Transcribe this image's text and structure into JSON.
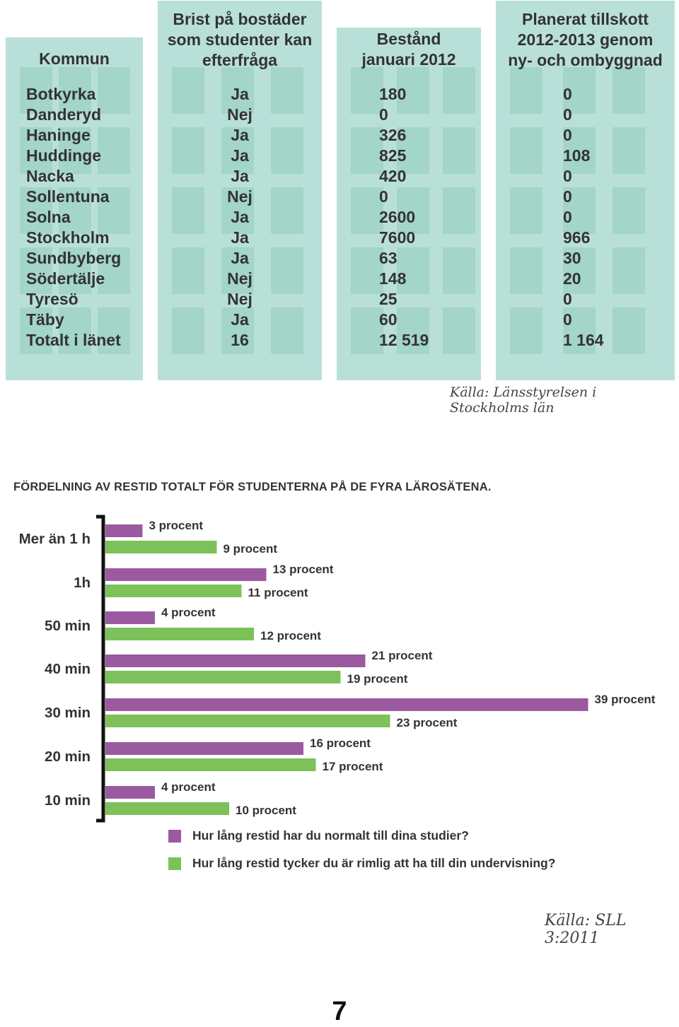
{
  "table": {
    "columns": [
      {
        "header": [
          "Kommun"
        ],
        "cells": [
          "Botkyrka",
          "Danderyd",
          "Haninge",
          "Huddinge",
          "Nacka",
          "Sollentuna",
          "Solna",
          "Stockholm",
          "Sundbyberg",
          "Södertälje",
          "Tyresö",
          "Täby",
          "Totalt i länet"
        ]
      },
      {
        "header": [
          "Brist på bostäder",
          "som studenter kan",
          "efterfråga"
        ],
        "cells": [
          "Ja",
          "Nej",
          "Ja",
          "Ja",
          "Ja",
          "Nej",
          "Ja",
          "Ja",
          "Ja",
          "Nej",
          "Nej",
          "Ja",
          "16"
        ]
      },
      {
        "header": [
          "Bestånd",
          "januari 2012"
        ],
        "cells": [
          "180",
          "0",
          "326",
          "825",
          "420",
          "0",
          "2600",
          "7600",
          "63",
          "148",
          "25",
          "60",
          "12 519"
        ]
      },
      {
        "header": [
          "Planerat tillskott",
          "2012-2013 genom",
          "ny- och ombyggnad"
        ],
        "cells": [
          "0",
          "0",
          "0",
          "108",
          "0",
          "0",
          "0",
          "966",
          "30",
          "20",
          "0",
          "0",
          "1 164"
        ]
      }
    ],
    "source": "Källa: Länsstyrelsen i Stockholms län",
    "colors": {
      "column_bg": "#b9e0d8",
      "tile_bg": "#a3d5c9"
    }
  },
  "chart_data": {
    "type": "bar",
    "orientation": "horizontal",
    "title": "FÖRDELNING AV RESTID TOTALT FÖR STUDENTERNA PÅ DE FYRA LÄROSÄTENA.",
    "categories": [
      "Mer än 1 h",
      "1h",
      "50 min",
      "40 min",
      "30 min",
      "20 min",
      "10 min"
    ],
    "series": [
      {
        "name": "Hur lång restid har du normalt till dina studier?",
        "color": "#9b59a0",
        "values": [
          3,
          13,
          4,
          21,
          39,
          16,
          4
        ],
        "labels": [
          "3 procent",
          "13 procent",
          "4 procent",
          "21 procent",
          "39 procent",
          "16 procent",
          "4 procent"
        ]
      },
      {
        "name": "Hur lång restid tycker du är rimlig att ha till din undervisning?",
        "color": "#7cc15a",
        "values": [
          9,
          11,
          12,
          19,
          23,
          17,
          10
        ],
        "labels": [
          "9 procent",
          "11 procent",
          "12 procent",
          "19 procent",
          "23 procent",
          "17 procent",
          "10 procent"
        ]
      }
    ],
    "xlim": [
      0,
      39
    ],
    "legend_position": "bottom",
    "source": "Källa: SLL 3:2011"
  },
  "page_number": "7"
}
